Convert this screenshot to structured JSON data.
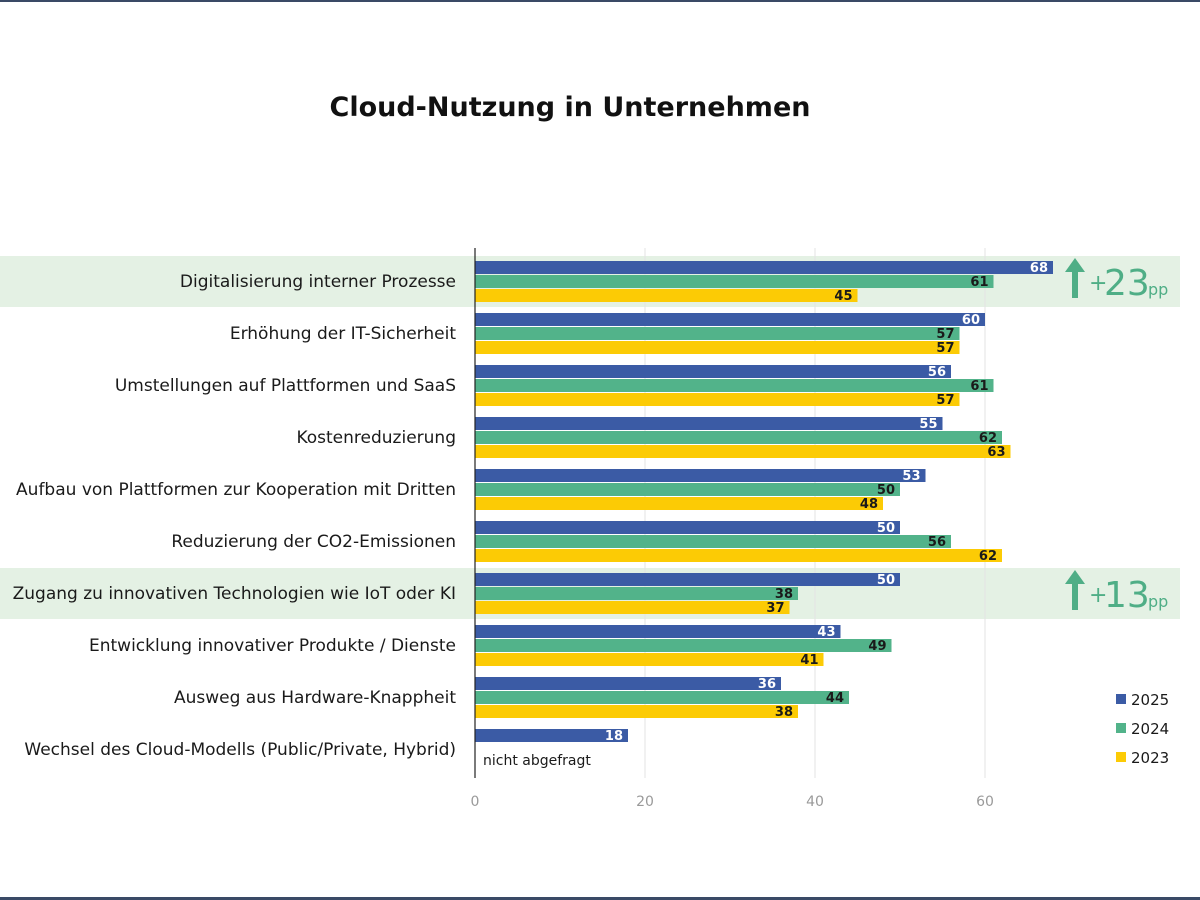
{
  "chart_data": {
    "type": "bar",
    "orientation": "horizontal",
    "title": "Cloud-Nutzung in Unternehmen",
    "categories": [
      "Digitalisierung interner Prozesse",
      "Erhöhung der IT-Sicherheit",
      "Umstellungen auf Plattformen und SaaS",
      "Kostenreduzierung",
      "Aufbau von Plattformen zur Kooperation mit Dritten",
      "Reduzierung der CO2-Emissionen",
      "Zugang zu innovativen Technologien wie IoT oder KI",
      "Entwicklung innovativer Produkte / Dienste",
      "Ausweg aus Hardware-Knappheit",
      "Wechsel des Cloud-Modells (Public/Private, Hybrid)"
    ],
    "series": [
      {
        "name": "2025",
        "color": "#3b5ba5",
        "label_color": "#ffffff",
        "values": [
          68,
          60,
          56,
          55,
          53,
          50,
          50,
          43,
          36,
          18
        ]
      },
      {
        "name": "2024",
        "color": "#52b38a",
        "label_color": "#1a1a1a",
        "values": [
          61,
          57,
          61,
          62,
          50,
          56,
          38,
          49,
          44,
          null
        ]
      },
      {
        "name": "2023",
        "color": "#fccb05",
        "label_color": "#1a1a1a",
        "values": [
          45,
          57,
          57,
          63,
          48,
          62,
          37,
          41,
          38,
          null
        ]
      }
    ],
    "xlim": [
      0,
      80
    ],
    "xticks": [
      0,
      20,
      40,
      60
    ],
    "grid": true,
    "legend_position": "bottom-right",
    "not_asked_note": "nicht abgefragt",
    "highlights": [
      {
        "category_index": 0,
        "plus": "+",
        "value": "23",
        "unit": "pp"
      },
      {
        "category_index": 6,
        "plus": "+",
        "value": "13",
        "unit": "pp"
      }
    ],
    "highlight_color": "#e4f1e4",
    "arrow_color": "#4fae86"
  }
}
